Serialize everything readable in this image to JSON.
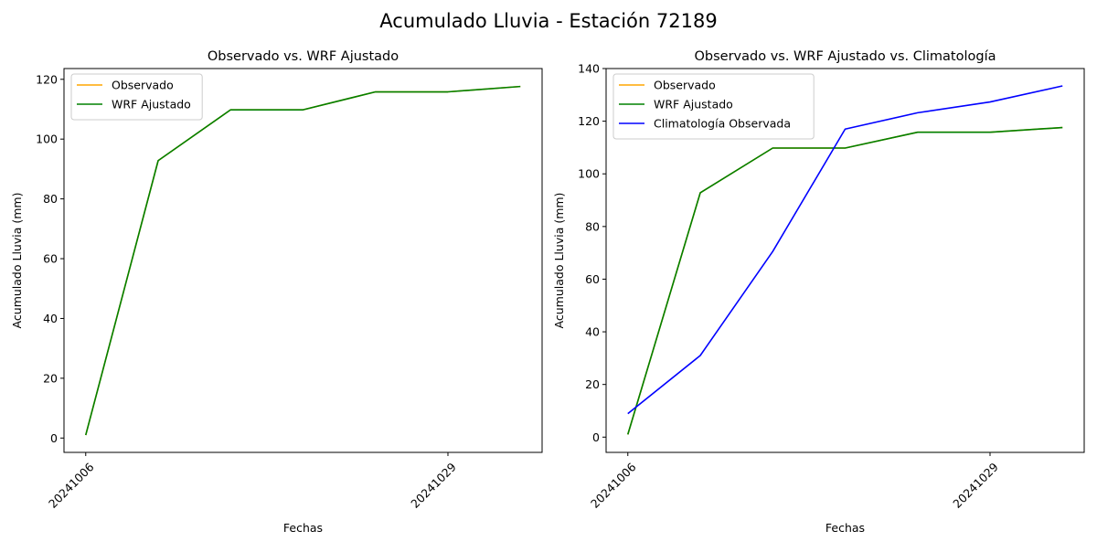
{
  "figure": {
    "suptitle": "Acumulado Lluvia - Estación 72189"
  },
  "chart_data": [
    {
      "type": "line",
      "title": "Observado vs. WRF Ajustado",
      "xlabel": "Fechas",
      "ylabel": "Acumulado Lluvia (mm)",
      "x": [
        0,
        1,
        2,
        3,
        4,
        5,
        6
      ],
      "xticks": [
        {
          "x": 0,
          "label": "20241006"
        },
        {
          "x": 5,
          "label": "20241029"
        }
      ],
      "xlim": [
        -0.3,
        6.3
      ],
      "ylim": [
        -4.8,
        123.6
      ],
      "yticks": [
        0,
        20,
        40,
        60,
        80,
        100,
        120
      ],
      "legend": "upper-left",
      "series": [
        {
          "name": "Observado",
          "color": "#ffa500",
          "values": [
            1.0,
            92.8,
            109.8,
            109.8,
            115.8,
            115.8,
            117.6
          ]
        },
        {
          "name": "WRF Ajustado",
          "color": "#008000",
          "values": [
            1.0,
            92.8,
            109.8,
            109.8,
            115.8,
            115.8,
            117.6
          ]
        }
      ]
    },
    {
      "type": "line",
      "title": "Observado vs. WRF Ajustado vs. Climatología",
      "xlabel": "Fechas",
      "ylabel": "Acumulado Lluvia (mm)",
      "x": [
        0,
        1,
        2,
        3,
        4,
        5,
        6
      ],
      "xticks": [
        {
          "x": 0,
          "label": "20241006"
        },
        {
          "x": 5,
          "label": "20241029"
        }
      ],
      "xlim": [
        -0.3,
        6.3
      ],
      "ylim": [
        -5.8,
        140
      ],
      "yticks": [
        0,
        20,
        40,
        60,
        80,
        100,
        120,
        140
      ],
      "legend": "upper-left",
      "series": [
        {
          "name": "Observado",
          "color": "#ffa500",
          "values": [
            1.0,
            92.8,
            109.8,
            109.8,
            115.8,
            115.8,
            117.6
          ]
        },
        {
          "name": "WRF Ajustado",
          "color": "#008000",
          "values": [
            1.0,
            92.8,
            109.8,
            109.8,
            115.8,
            115.8,
            117.6
          ]
        },
        {
          "name": "Climatología Observada",
          "color": "#0000ff",
          "values": [
            8.9,
            31.0,
            70.5,
            117.0,
            123.2,
            127.3,
            133.4
          ]
        }
      ]
    }
  ]
}
